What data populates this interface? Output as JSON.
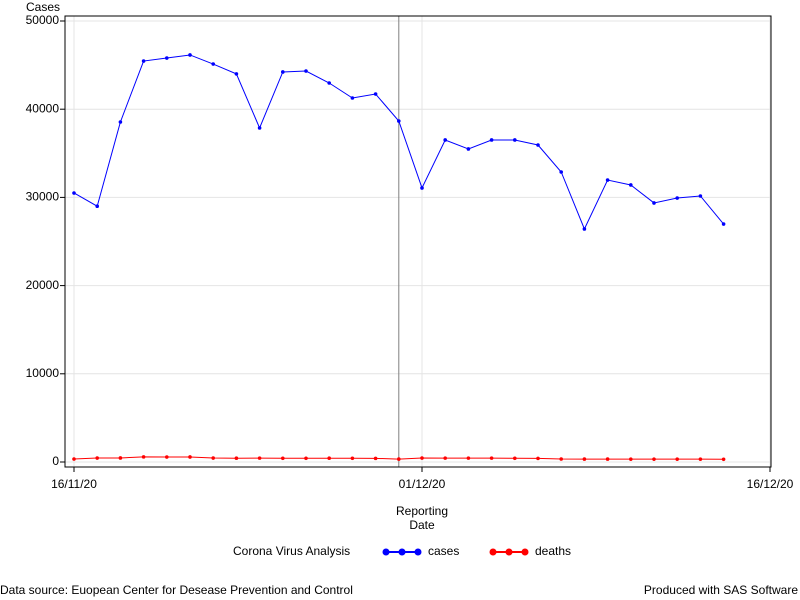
{
  "chart_data": {
    "type": "line",
    "ylabel": "Cases",
    "xlabel": [
      "Reporting",
      "Date"
    ],
    "x": [
      "16/11/20",
      "17/11/20",
      "18/11/20",
      "19/11/20",
      "20/11/20",
      "21/11/20",
      "22/11/20",
      "23/11/20",
      "24/11/20",
      "25/11/20",
      "26/11/20",
      "27/11/20",
      "28/11/20",
      "29/11/20",
      "30/11/20",
      "01/12/20",
      "02/12/20",
      "03/12/20",
      "04/12/20",
      "05/12/20",
      "06/12/20",
      "07/12/20",
      "08/12/20",
      "09/12/20",
      "10/12/20",
      "11/12/20",
      "12/12/20",
      "13/12/20",
      "14/12/20"
    ],
    "series": [
      {
        "name": "cases",
        "color": "#0000ff",
        "values": [
          30500,
          29000,
          38550,
          45460,
          45800,
          46150,
          45120,
          44000,
          37870,
          44220,
          44330,
          42970,
          41270,
          41720,
          38660,
          31070,
          36510,
          35490,
          36510,
          36510,
          35940,
          32880,
          26420,
          31970,
          31410,
          29370,
          29930,
          30160,
          26980
        ]
      },
      {
        "name": "deaths",
        "color": "#ff0000",
        "values": [
          340,
          450,
          460,
          580,
          560,
          570,
          450,
          430,
          440,
          420,
          420,
          430,
          420,
          410,
          330,
          450,
          440,
          440,
          440,
          420,
          410,
          340,
          330,
          330,
          320,
          320,
          320,
          320,
          310
        ]
      }
    ],
    "xlim": [
      "16/11/20",
      "16/12/20"
    ],
    "xticks": [
      "16/11/20",
      "01/12/20",
      "16/12/20"
    ],
    "ylim": [
      0,
      50000
    ],
    "yticks": [
      0,
      10000,
      20000,
      30000,
      40000,
      50000
    ],
    "refline": "30/11/20",
    "grid": true,
    "legend_title": "Corona Virus Analysis",
    "legend_position": "bottom",
    "footnote_left": "Data source: Euopean Center for Desease Prevention and Control",
    "footnote_right": "Produced with SAS Software"
  }
}
